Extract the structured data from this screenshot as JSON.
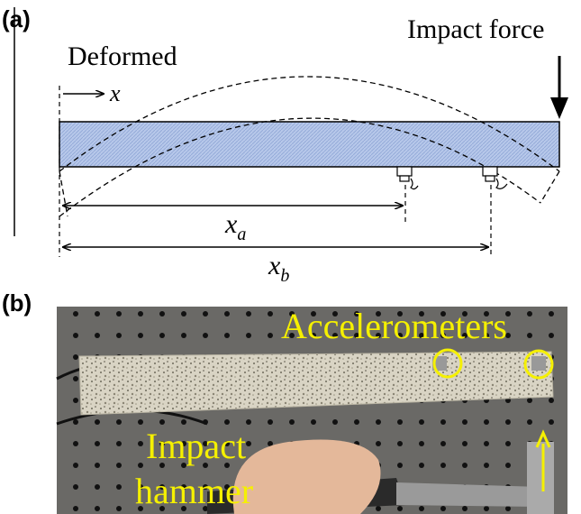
{
  "panel_a": {
    "label": "(a)",
    "deformed": "Deformed",
    "impact_force": "Impact force",
    "x_axis": "x",
    "xa": {
      "base": "x",
      "sub": "a"
    },
    "xb": {
      "base": "x",
      "sub": "b"
    }
  },
  "panel_b": {
    "label": "(b)",
    "accelerometers": "Accelerometers",
    "impact_hammer": [
      "Impact",
      "hammer"
    ]
  }
}
